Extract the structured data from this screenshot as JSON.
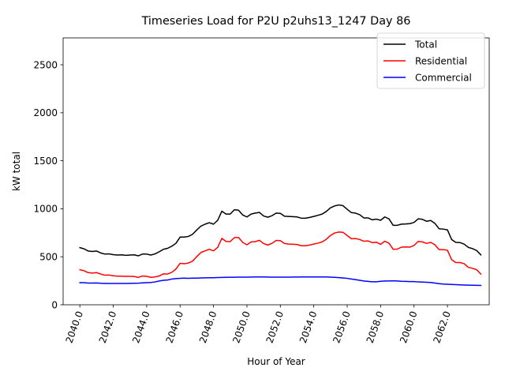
{
  "chart_data": {
    "type": "line",
    "title": "Timeseries Load for P2U p2uhs13_1247  Day 86",
    "xlabel": "Hour of Year",
    "ylabel": "kW total",
    "xlim": [
      2039.0,
      2064.5
    ],
    "ylim": [
      0,
      2780
    ],
    "xticks": [
      2040,
      2042,
      2044,
      2046,
      2048,
      2050,
      2052,
      2054,
      2056,
      2058,
      2060,
      2062
    ],
    "xtick_labels": [
      "2040.0",
      "2042.0",
      "2044.0",
      "2046.0",
      "2048.0",
      "2050.0",
      "2052.0",
      "2054.0",
      "2056.0",
      "2058.0",
      "2060.0",
      "2062.0"
    ],
    "yticks": [
      0,
      500,
      1000,
      1500,
      2000,
      2500
    ],
    "ytick_labels": [
      "0",
      "500",
      "1000",
      "1500",
      "2000",
      "2500"
    ],
    "legend_position": "top-right",
    "x_start": 2040.0,
    "x_step": 0.25,
    "series": [
      {
        "name": "Total",
        "color": "#000000",
        "values": [
          595,
          583,
          560,
          555,
          560,
          540,
          528,
          530,
          522,
          518,
          520,
          515,
          518,
          520,
          510,
          528,
          528,
          518,
          530,
          552,
          578,
          588,
          610,
          640,
          705,
          705,
          712,
          735,
          780,
          820,
          840,
          855,
          840,
          880,
          975,
          945,
          945,
          990,
          985,
          935,
          915,
          945,
          955,
          962,
          925,
          912,
          928,
          955,
          952,
          922,
          920,
          918,
          915,
          902,
          902,
          910,
          920,
          932,
          945,
          972,
          1010,
          1030,
          1040,
          1032,
          995,
          960,
          955,
          938,
          905,
          905,
          885,
          892,
          880,
          915,
          895,
          828,
          828,
          840,
          842,
          845,
          858,
          895,
          890,
          870,
          878,
          848,
          792,
          788,
          780,
          680,
          650,
          648,
          632,
          598,
          585,
          565,
          520
        ]
      },
      {
        "name": "Residential",
        "color": "#ff0000",
        "values": [
          365,
          355,
          335,
          330,
          335,
          320,
          308,
          310,
          302,
          298,
          298,
          296,
          296,
          295,
          285,
          300,
          296,
          286,
          290,
          300,
          322,
          320,
          338,
          372,
          432,
          428,
          435,
          455,
          502,
          545,
          562,
          578,
          562,
          598,
          692,
          660,
          658,
          700,
          700,
          650,
          625,
          655,
          658,
          672,
          638,
          622,
          640,
          670,
          668,
          638,
          632,
          630,
          628,
          615,
          615,
          622,
          632,
          642,
          655,
          682,
          722,
          748,
          758,
          755,
          722,
          688,
          690,
          680,
          662,
          665,
          648,
          652,
          630,
          662,
          642,
          578,
          580,
          600,
          602,
          600,
          618,
          660,
          655,
          640,
          650,
          625,
          575,
          575,
          568,
          470,
          440,
          440,
          428,
          390,
          380,
          365,
          320
        ]
      },
      {
        "name": "Commercial",
        "color": "#0000ff",
        "values": [
          230,
          230,
          226,
          226,
          227,
          224,
          222,
          222,
          222,
          222,
          222,
          222,
          223,
          224,
          225,
          228,
          230,
          232,
          238,
          248,
          255,
          258,
          268,
          272,
          275,
          278,
          276,
          278,
          278,
          280,
          281,
          282,
          282,
          284,
          285,
          286,
          287,
          287,
          288,
          288,
          288,
          289,
          290,
          290,
          290,
          289,
          288,
          288,
          288,
          288,
          288,
          289,
          289,
          290,
          290,
          290,
          290,
          290,
          290,
          290,
          288,
          286,
          283,
          280,
          275,
          268,
          262,
          255,
          248,
          244,
          240,
          240,
          245,
          248,
          248,
          250,
          248,
          245,
          244,
          242,
          242,
          238,
          236,
          234,
          232,
          226,
          220,
          216,
          214,
          212,
          210,
          208,
          206,
          205,
          204,
          203,
          202
        ]
      }
    ]
  }
}
